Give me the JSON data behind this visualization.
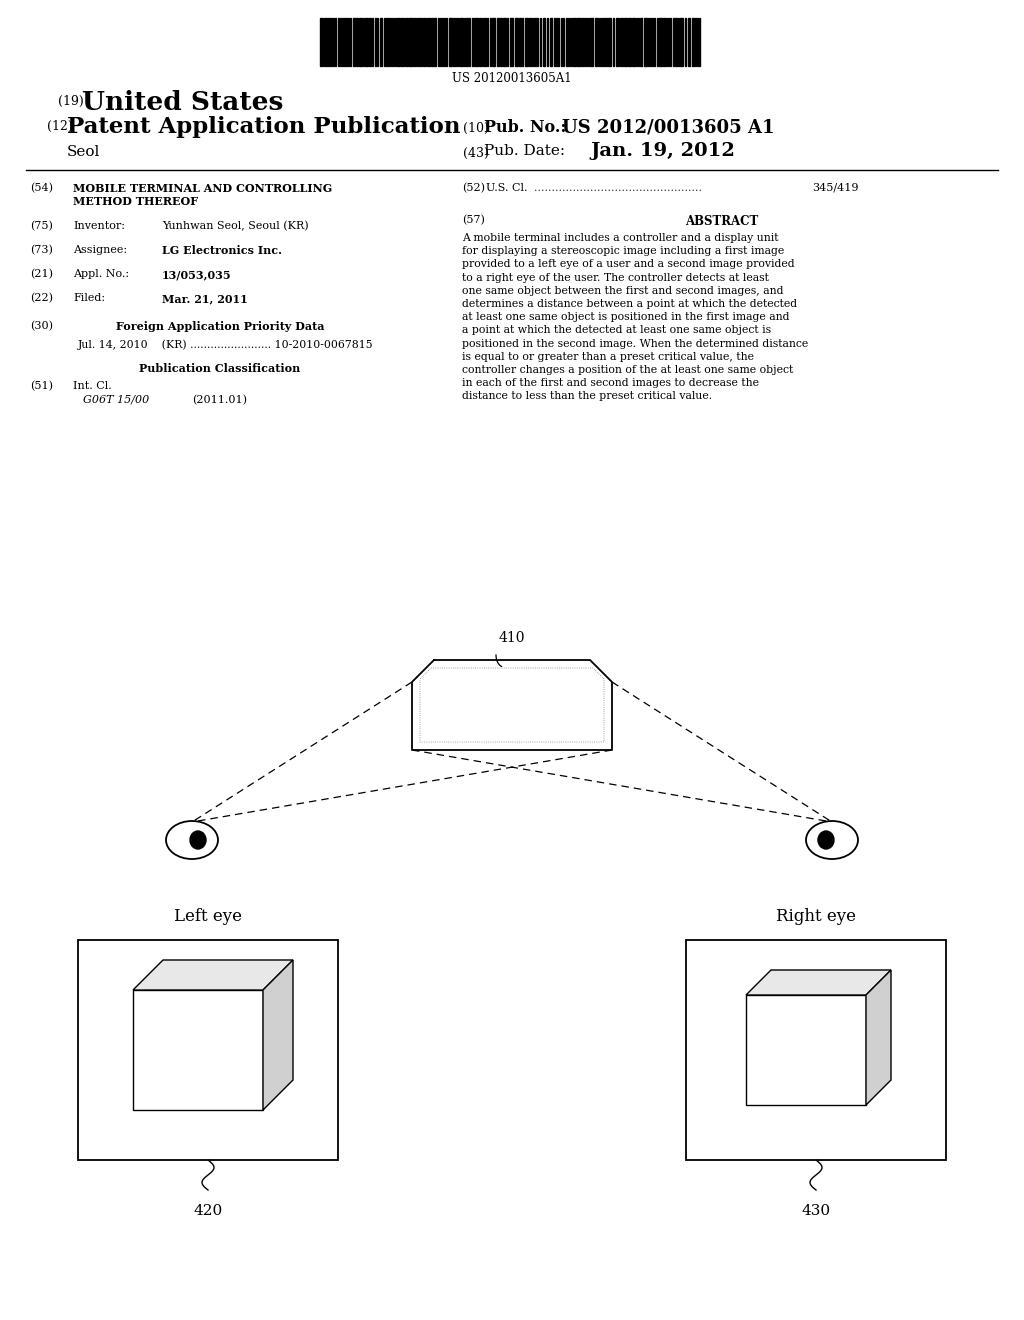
{
  "bg_color": "#ffffff",
  "barcode_text": "US 20120013605A1",
  "header": {
    "line1_num": "(19)",
    "line1_text": "United States",
    "line2_num": "(12)",
    "line2_text": "Patent Application Publication",
    "line2_right_num": "(10)",
    "line2_right_label": "Pub. No.:",
    "line2_right_val": "US 2012/0013605 A1",
    "line3_name": "Seol",
    "line3_right_num": "(43)",
    "line3_right_label": "Pub. Date:",
    "line3_right_val": "Jan. 19, 2012"
  },
  "abstract_text": "A mobile terminal includes a controller and a display unit for displaying a stereoscopic image including a first image provided to a left eye of a user and a second image provided to a right eye of the user. The controller detects at least one same object between the first and second images, and determines a distance between a point at which the detected at least one same object is positioned in the first image and a point at which the detected at least one same object is positioned in the second image. When the determined distance is equal to or greater than a preset critical value, the controller changes a position of the at least one same object in each of the first and second images to decrease the distance to less than the preset critical value.",
  "diagram": {
    "display_label": "410",
    "left_eye_label": "420",
    "right_eye_label": "430",
    "left_view_label": "Left eye",
    "right_view_label": "Right eye"
  }
}
